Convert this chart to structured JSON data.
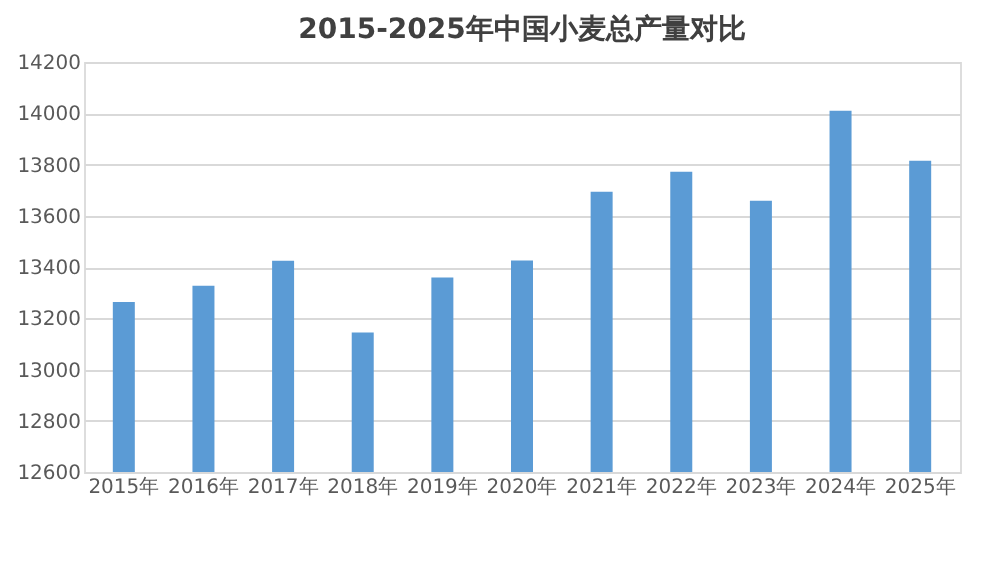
{
  "chart_data": {
    "type": "bar",
    "title": "2015-2025年中国小麦总产量对比",
    "categories": [
      "2015年",
      "2016年",
      "2017年",
      "2018年",
      "2019年",
      "2020年",
      "2021年",
      "2022年",
      "2023年",
      "2024年",
      "2025年"
    ],
    "values": [
      13263,
      13327,
      13424,
      13144,
      13359,
      13425,
      13694,
      13772,
      13659,
      14010,
      13815
    ],
    "color": "#5b9bd5",
    "ylim": [
      12600,
      14200
    ],
    "yticks": [
      12600,
      12800,
      13000,
      13200,
      13400,
      13600,
      13800,
      14000,
      14200
    ],
    "grid": "y"
  }
}
